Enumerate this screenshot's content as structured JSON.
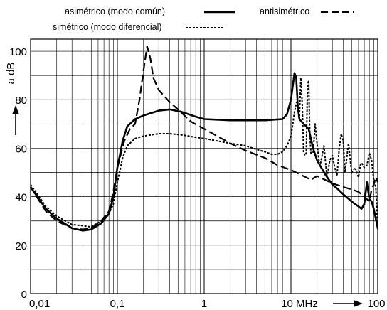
{
  "chart_data": {
    "type": "line",
    "x_scale": "log",
    "grid": true,
    "legend_placement": "top",
    "xlim": [
      0.01,
      100
    ],
    "ylim": [
      0,
      105
    ],
    "ylabel": "a dB",
    "x_ticks": [
      {
        "value": 0.01,
        "label": "0,01"
      },
      {
        "value": 0.1,
        "label": "0,1"
      },
      {
        "value": 1,
        "label": "1"
      },
      {
        "value": 10,
        "label": "10 MHz"
      },
      {
        "value": 100,
        "label": "100"
      }
    ],
    "y_ticks": [
      {
        "value": 0,
        "label": "0"
      },
      {
        "value": 20,
        "label": "20"
      },
      {
        "value": 40,
        "label": "40"
      },
      {
        "value": 60,
        "label": "60"
      },
      {
        "value": 80,
        "label": "80"
      },
      {
        "value": 100,
        "label": "100"
      }
    ],
    "series": [
      {
        "name": "asimétrico (modo común)",
        "style": "solid",
        "points": [
          [
            0.01,
            44
          ],
          [
            0.015,
            35
          ],
          [
            0.02,
            31
          ],
          [
            0.03,
            27
          ],
          [
            0.04,
            26
          ],
          [
            0.05,
            26.5
          ],
          [
            0.065,
            29
          ],
          [
            0.08,
            33
          ],
          [
            0.09,
            40
          ],
          [
            0.1,
            52
          ],
          [
            0.115,
            63
          ],
          [
            0.13,
            69
          ],
          [
            0.16,
            72
          ],
          [
            0.2,
            73.5
          ],
          [
            0.3,
            75.5
          ],
          [
            0.4,
            76
          ],
          [
            0.55,
            75
          ],
          [
            0.8,
            73
          ],
          [
            1,
            72
          ],
          [
            2,
            71.5
          ],
          [
            5,
            71.5
          ],
          [
            8,
            72
          ],
          [
            9,
            74
          ],
          [
            10,
            80
          ],
          [
            11,
            91
          ],
          [
            11.5,
            89
          ],
          [
            12,
            77
          ],
          [
            12.5,
            72
          ],
          [
            14,
            70
          ],
          [
            16,
            68
          ],
          [
            18,
            60
          ],
          [
            20,
            55
          ],
          [
            25,
            49
          ],
          [
            30,
            45
          ],
          [
            35,
            43
          ],
          [
            40,
            41
          ],
          [
            50,
            38
          ],
          [
            60,
            36
          ],
          [
            65,
            35
          ],
          [
            70,
            37
          ],
          [
            75,
            46
          ],
          [
            80,
            39
          ],
          [
            85,
            38
          ],
          [
            90,
            35
          ],
          [
            100,
            27
          ]
        ]
      },
      {
        "name": "simétrico (modo diferencial)",
        "style": "dotted",
        "points": [
          [
            0.01,
            45
          ],
          [
            0.015,
            36
          ],
          [
            0.02,
            32
          ],
          [
            0.03,
            28.5
          ],
          [
            0.04,
            28
          ],
          [
            0.05,
            27.5
          ],
          [
            0.065,
            30
          ],
          [
            0.08,
            33
          ],
          [
            0.09,
            37
          ],
          [
            0.1,
            46
          ],
          [
            0.115,
            56
          ],
          [
            0.13,
            61
          ],
          [
            0.16,
            64
          ],
          [
            0.2,
            65
          ],
          [
            0.3,
            66
          ],
          [
            0.4,
            66
          ],
          [
            0.55,
            65.5
          ],
          [
            0.8,
            64.5
          ],
          [
            1,
            64
          ],
          [
            2,
            62
          ],
          [
            3,
            61
          ],
          [
            4,
            59.5
          ],
          [
            5,
            58.5
          ],
          [
            6,
            57.5
          ],
          [
            7,
            57.5
          ],
          [
            8,
            58.5
          ],
          [
            9,
            61
          ],
          [
            10,
            65
          ],
          [
            10.5,
            70
          ],
          [
            11,
            75
          ],
          [
            11.6,
            79
          ],
          [
            12,
            77
          ],
          [
            12.5,
            72
          ],
          [
            13,
            89
          ],
          [
            13.5,
            78
          ],
          [
            14,
            58
          ],
          [
            14.5,
            57
          ],
          [
            15,
            58
          ],
          [
            15.5,
            85
          ],
          [
            16,
            88
          ],
          [
            16.5,
            66
          ],
          [
            17,
            58
          ],
          [
            18,
            58
          ],
          [
            19,
            70
          ],
          [
            20,
            62
          ],
          [
            21,
            55
          ],
          [
            22,
            54
          ],
          [
            24,
            61
          ],
          [
            26,
            48
          ],
          [
            28,
            55
          ],
          [
            30,
            57
          ],
          [
            32,
            52
          ],
          [
            34,
            49
          ],
          [
            36,
            60
          ],
          [
            38,
            66
          ],
          [
            40,
            63
          ],
          [
            42,
            50
          ],
          [
            44,
            56
          ],
          [
            46,
            62
          ],
          [
            48,
            56
          ],
          [
            50,
            50
          ],
          [
            55,
            52
          ],
          [
            60,
            48
          ],
          [
            63,
            53
          ],
          [
            65,
            54
          ],
          [
            70,
            52
          ],
          [
            75,
            53
          ],
          [
            80,
            58
          ],
          [
            85,
            55
          ],
          [
            90,
            47
          ],
          [
            95,
            44
          ],
          [
            100,
            26
          ]
        ]
      },
      {
        "name": "antisimétrico",
        "style": "dashed",
        "points": [
          [
            0.01,
            44
          ],
          [
            0.015,
            34
          ],
          [
            0.02,
            30
          ],
          [
            0.03,
            27
          ],
          [
            0.04,
            26.5
          ],
          [
            0.05,
            27
          ],
          [
            0.065,
            30
          ],
          [
            0.08,
            34
          ],
          [
            0.09,
            42
          ],
          [
            0.1,
            52
          ],
          [
            0.12,
            63
          ],
          [
            0.14,
            68
          ],
          [
            0.16,
            70
          ],
          [
            0.18,
            80
          ],
          [
            0.2,
            92
          ],
          [
            0.22,
            102
          ],
          [
            0.24,
            97
          ],
          [
            0.26,
            89
          ],
          [
            0.3,
            84
          ],
          [
            0.4,
            79
          ],
          [
            0.5,
            76
          ],
          [
            0.7,
            71
          ],
          [
            1,
            68
          ],
          [
            2,
            62
          ],
          [
            3,
            59
          ],
          [
            5,
            56
          ],
          [
            7,
            53
          ],
          [
            10,
            51
          ],
          [
            13,
            49
          ],
          [
            17,
            47
          ],
          [
            20,
            48.5
          ],
          [
            30,
            45.5
          ],
          [
            40,
            44
          ],
          [
            50,
            43
          ],
          [
            60,
            42
          ],
          [
            70,
            40
          ],
          [
            80,
            38
          ],
          [
            85,
            43
          ],
          [
            90,
            45
          ],
          [
            95,
            48
          ],
          [
            100,
            46
          ]
        ]
      }
    ]
  }
}
